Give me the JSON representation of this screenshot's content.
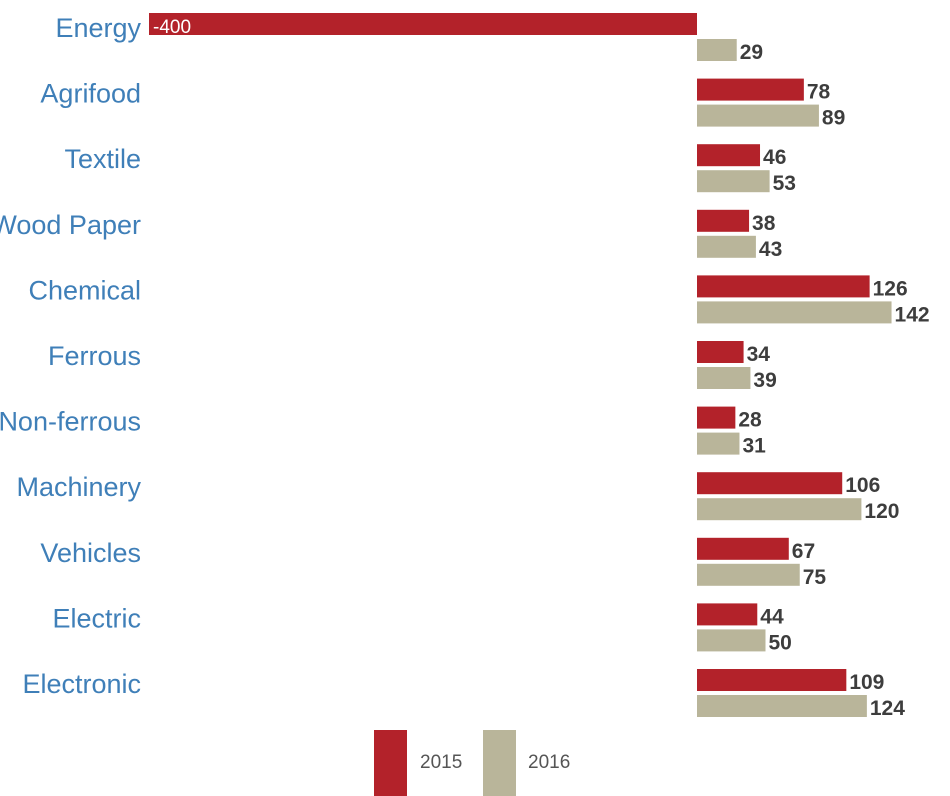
{
  "chart_data": {
    "type": "bar",
    "orientation": "horizontal",
    "title": "",
    "xlabel": "",
    "ylabel": "",
    "categories": [
      "Energy",
      "Agrifood",
      "Textile",
      "Wood Paper",
      "Chemical",
      "Ferrous",
      "Non-ferrous",
      "Machinery",
      "Vehicles",
      "Electric",
      "Electronic"
    ],
    "series": [
      {
        "name": "2015",
        "color": "#b3222a",
        "values": [
          -400,
          78,
          46,
          38,
          126,
          34,
          28,
          106,
          67,
          44,
          109
        ]
      },
      {
        "name": "2016",
        "color": "#b9b59a",
        "values": [
          29,
          89,
          53,
          43,
          142,
          39,
          31,
          120,
          75,
          50,
          124
        ]
      }
    ],
    "xlim": [
      -400,
      145
    ],
    "grid": false,
    "legend": {
      "position": "bottom-center"
    }
  }
}
